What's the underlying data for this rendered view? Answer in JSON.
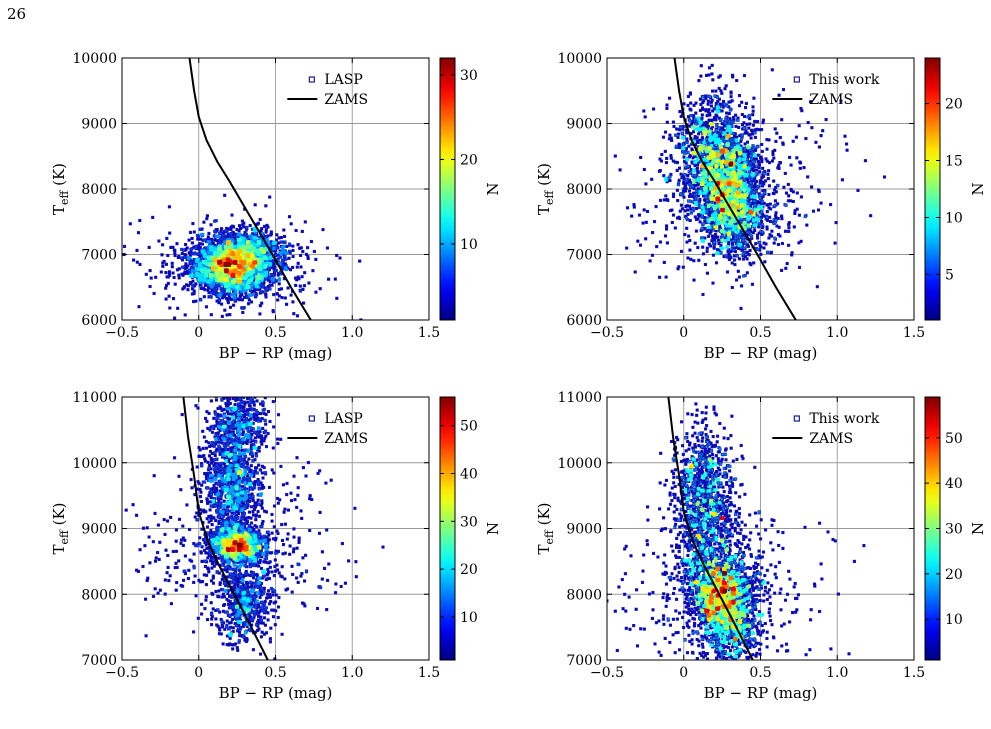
{
  "page": {
    "number": "26"
  },
  "colorbar_label": "N",
  "chart_data": [
    {
      "type": "heatmap",
      "position": "top-left",
      "xlabel": "BP − RP (mag)",
      "ylabel": "T_eff (K)",
      "xlim": [
        -0.5,
        1.5
      ],
      "ylim": [
        6000,
        10000
      ],
      "xticks": [
        -0.5,
        0,
        0.5,
        1.0,
        1.5
      ],
      "xtick_labels": [
        "−0.5",
        "0",
        "0.5",
        "1.0",
        "1.5"
      ],
      "yticks": [
        6000,
        7000,
        8000,
        9000,
        10000
      ],
      "ytick_labels": [
        "6000",
        "7000",
        "8000",
        "9000",
        "10000"
      ],
      "grid": true,
      "legend": {
        "placement": "top-right",
        "entries": [
          "LASP",
          "ZAMS"
        ]
      },
      "colorbar": {
        "min": 1,
        "max": 32,
        "ticks": [
          10,
          20,
          30
        ],
        "label": "N"
      },
      "zams": {
        "name": "ZAMS",
        "points": [
          [
            -0.06,
            10000
          ],
          [
            -0.03,
            9500
          ],
          [
            0.0,
            9100
          ],
          [
            0.05,
            8750
          ],
          [
            0.12,
            8420
          ],
          [
            0.2,
            8120
          ],
          [
            0.28,
            7800
          ],
          [
            0.38,
            7400
          ],
          [
            0.48,
            7000
          ],
          [
            0.6,
            6500
          ],
          [
            0.73,
            6000
          ]
        ]
      },
      "density_clusters": [
        {
          "x": 0.22,
          "y": 6800,
          "sx": 0.13,
          "sy": 200,
          "weight": 1.0
        },
        {
          "x": 0.3,
          "y": 7050,
          "sx": 0.15,
          "sy": 170,
          "weight": 0.35
        }
      ],
      "scatter_spread": {
        "sx": 0.3,
        "sy": 360
      },
      "peak": {
        "x": 0.22,
        "y": 6820
      },
      "n_points": 3400
    },
    {
      "type": "heatmap",
      "position": "top-right",
      "xlabel": "BP − RP (mag)",
      "ylabel": "T_eff (K)",
      "xlim": [
        -0.5,
        1.5
      ],
      "ylim": [
        6000,
        10000
      ],
      "xticks": [
        -0.5,
        0,
        0.5,
        1.0,
        1.5
      ],
      "xtick_labels": [
        "−0.5",
        "0",
        "0.5",
        "1.0",
        "1.5"
      ],
      "yticks": [
        6000,
        7000,
        8000,
        9000,
        10000
      ],
      "ytick_labels": [
        "6000",
        "7000",
        "8000",
        "9000",
        "10000"
      ],
      "grid": true,
      "legend": {
        "placement": "top-right",
        "entries": [
          "This work",
          "ZAMS"
        ]
      },
      "colorbar": {
        "min": 1,
        "max": 24,
        "ticks": [
          5,
          10,
          15,
          20
        ],
        "label": "N"
      },
      "zams": {
        "name": "ZAMS",
        "points": [
          [
            -0.06,
            10000
          ],
          [
            -0.03,
            9500
          ],
          [
            0.0,
            9100
          ],
          [
            0.05,
            8750
          ],
          [
            0.12,
            8420
          ],
          [
            0.2,
            8120
          ],
          [
            0.28,
            7800
          ],
          [
            0.38,
            7400
          ],
          [
            0.48,
            7000
          ],
          [
            0.6,
            6500
          ],
          [
            0.73,
            6000
          ]
        ]
      },
      "density_clusters": [
        {
          "x": 0.28,
          "y": 8050,
          "sx": 0.12,
          "sy": 380,
          "weight": 1.0
        },
        {
          "x": 0.2,
          "y": 8600,
          "sx": 0.12,
          "sy": 450,
          "weight": 0.7
        },
        {
          "x": 0.35,
          "y": 7500,
          "sx": 0.11,
          "sy": 280,
          "weight": 0.45
        }
      ],
      "scatter_spread": {
        "sx": 0.35,
        "sy": 650
      },
      "peak": {
        "x": 0.3,
        "y": 7980
      },
      "n_points": 3400
    },
    {
      "type": "heatmap",
      "position": "bottom-left",
      "xlabel": "BP − RP (mag)",
      "ylabel": "T_eff (K)",
      "xlim": [
        -0.5,
        1.5
      ],
      "ylim": [
        7000,
        11000
      ],
      "xticks": [
        -0.5,
        0,
        0.5,
        1.0,
        1.5
      ],
      "xtick_labels": [
        "−0.5",
        "0",
        "0.5",
        "1.0",
        "1.5"
      ],
      "yticks": [
        7000,
        8000,
        9000,
        10000,
        11000
      ],
      "ytick_labels": [
        "7000",
        "8000",
        "9000",
        "10000",
        "11000"
      ],
      "grid": true,
      "legend": {
        "placement": "top-right",
        "entries": [
          "LASP",
          "ZAMS"
        ]
      },
      "colorbar": {
        "min": 1,
        "max": 56,
        "ticks": [
          10,
          20,
          30,
          40,
          50
        ],
        "label": "N"
      },
      "zams": {
        "name": "ZAMS",
        "points": [
          [
            -0.1,
            11000
          ],
          [
            -0.07,
            10400
          ],
          [
            -0.03,
            9800
          ],
          [
            0.0,
            9250
          ],
          [
            0.06,
            8800
          ],
          [
            0.13,
            8450
          ],
          [
            0.22,
            8050
          ],
          [
            0.32,
            7600
          ],
          [
            0.45,
            7000
          ]
        ]
      },
      "density_clusters": [
        {
          "x": 0.25,
          "y": 8750,
          "sx": 0.09,
          "sy": 140,
          "weight": 1.0
        },
        {
          "x": 0.22,
          "y": 9650,
          "sx": 0.09,
          "sy": 480,
          "weight": 0.8
        },
        {
          "x": 0.26,
          "y": 10600,
          "sx": 0.1,
          "sy": 350,
          "weight": 0.45
        },
        {
          "x": 0.3,
          "y": 7900,
          "sx": 0.09,
          "sy": 320,
          "weight": 0.5
        }
      ],
      "scatter_spread": {
        "sx": 0.33,
        "sy": 600
      },
      "peak": {
        "x": 0.25,
        "y": 8740
      },
      "n_points": 3600
    },
    {
      "type": "heatmap",
      "position": "bottom-right",
      "xlabel": "BP − RP (mag)",
      "ylabel": "T_eff (K)",
      "xlim": [
        -0.5,
        1.5
      ],
      "ylim": [
        7000,
        11000
      ],
      "xticks": [
        -0.5,
        0,
        0.5,
        1.0,
        1.5
      ],
      "xtick_labels": [
        "−0.5",
        "0",
        "0.5",
        "1.0",
        "1.5"
      ],
      "yticks": [
        7000,
        8000,
        9000,
        10000,
        11000
      ],
      "ytick_labels": [
        "7000",
        "8000",
        "9000",
        "10000",
        "11000"
      ],
      "grid": true,
      "legend": {
        "placement": "top-right",
        "entries": [
          "This work",
          "ZAMS"
        ]
      },
      "colorbar": {
        "min": 1,
        "max": 59,
        "ticks": [
          10,
          20,
          30,
          40,
          50
        ],
        "label": "N"
      },
      "zams": {
        "name": "ZAMS",
        "points": [
          [
            -0.1,
            11000
          ],
          [
            -0.07,
            10400
          ],
          [
            -0.03,
            9800
          ],
          [
            0.0,
            9250
          ],
          [
            0.06,
            8800
          ],
          [
            0.13,
            8450
          ],
          [
            0.22,
            8050
          ],
          [
            0.32,
            7600
          ],
          [
            0.45,
            7000
          ]
        ]
      },
      "density_clusters": [
        {
          "x": 0.24,
          "y": 8000,
          "sx": 0.11,
          "sy": 260,
          "weight": 1.0
        },
        {
          "x": 0.16,
          "y": 9000,
          "sx": 0.11,
          "sy": 480,
          "weight": 0.7
        },
        {
          "x": 0.12,
          "y": 9900,
          "sx": 0.09,
          "sy": 400,
          "weight": 0.35
        },
        {
          "x": 0.3,
          "y": 7450,
          "sx": 0.09,
          "sy": 230,
          "weight": 0.45
        }
      ],
      "scatter_spread": {
        "sx": 0.35,
        "sy": 650
      },
      "peak": {
        "x": 0.25,
        "y": 7990
      },
      "n_points": 3600
    }
  ]
}
